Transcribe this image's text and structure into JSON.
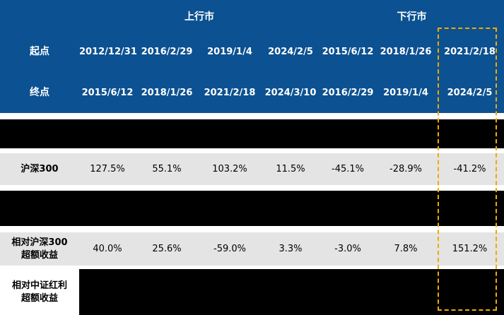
{
  "table": {
    "groups": {
      "up": "上行市",
      "down": "下行市"
    },
    "header_rows": [
      {
        "label": "起点",
        "cells": [
          "2012/12/31",
          "2016/2/29",
          "2019/1/4",
          "2024/2/5",
          "2015/6/12",
          "2018/1/26",
          "2021/2/18"
        ]
      },
      {
        "label": "终点",
        "cells": [
          "2015/6/12",
          "2018/1/26",
          "2021/2/18",
          "2024/3/10",
          "2016/2/29",
          "2019/1/4",
          "2024/2/5"
        ]
      }
    ],
    "body_rows": [
      {
        "label_line1": "沪深300",
        "label_line2": "",
        "cells": [
          "127.5%",
          "55.1%",
          "103.2%",
          "11.5%",
          "-45.1%",
          "-28.9%",
          "-41.2%"
        ]
      },
      {
        "label_line1": "相对沪深300",
        "label_line2": "超额收益",
        "cells": [
          "40.0%",
          "25.6%",
          "-59.0%",
          "3.3%",
          "-3.0%",
          "7.8%",
          "151.2%"
        ]
      },
      {
        "label_line1": "相对中证红利",
        "label_line2": "超额收益",
        "cells": []
      }
    ]
  },
  "colors": {
    "header_bg": "#0C5191",
    "header_text": "#FFFFFF",
    "data_row_bg": "#E4E4E4",
    "redacted_bg": "#000000",
    "highlight_border": "#F2A900"
  },
  "chart_data": {
    "type": "table",
    "title": "",
    "column_groups": [
      {
        "label": "上行市",
        "columns": [
          1,
          2,
          3,
          4
        ]
      },
      {
        "label": "下行市",
        "columns": [
          5,
          6,
          7
        ]
      }
    ],
    "columns": [
      {
        "start": "2012/12/31",
        "end": "2015/6/12"
      },
      {
        "start": "2016/2/29",
        "end": "2018/1/26"
      },
      {
        "start": "2019/1/4",
        "end": "2021/2/18"
      },
      {
        "start": "2024/2/5",
        "end": "2024/3/10"
      },
      {
        "start": "2015/6/12",
        "end": "2016/2/29"
      },
      {
        "start": "2018/1/26",
        "end": "2019/1/4"
      },
      {
        "start": "2021/2/18",
        "end": "2024/2/5"
      }
    ],
    "rows": [
      {
        "name": "沪深300",
        "unit": "%",
        "values": [
          127.5,
          55.1,
          103.2,
          11.5,
          -45.1,
          -28.9,
          -41.2
        ]
      },
      {
        "name": "相对沪深300超额收益",
        "unit": "%",
        "values": [
          40.0,
          25.6,
          -59.0,
          3.3,
          -3.0,
          7.8,
          151.2
        ]
      },
      {
        "name": "相对中证红利超额收益",
        "unit": "%",
        "values": null,
        "note": "values redacted (black band)"
      }
    ],
    "redacted_bands": 2,
    "highlighted_column_index": 7,
    "highlighted_column_period": "2021/2/18 - 2024/2/5"
  }
}
